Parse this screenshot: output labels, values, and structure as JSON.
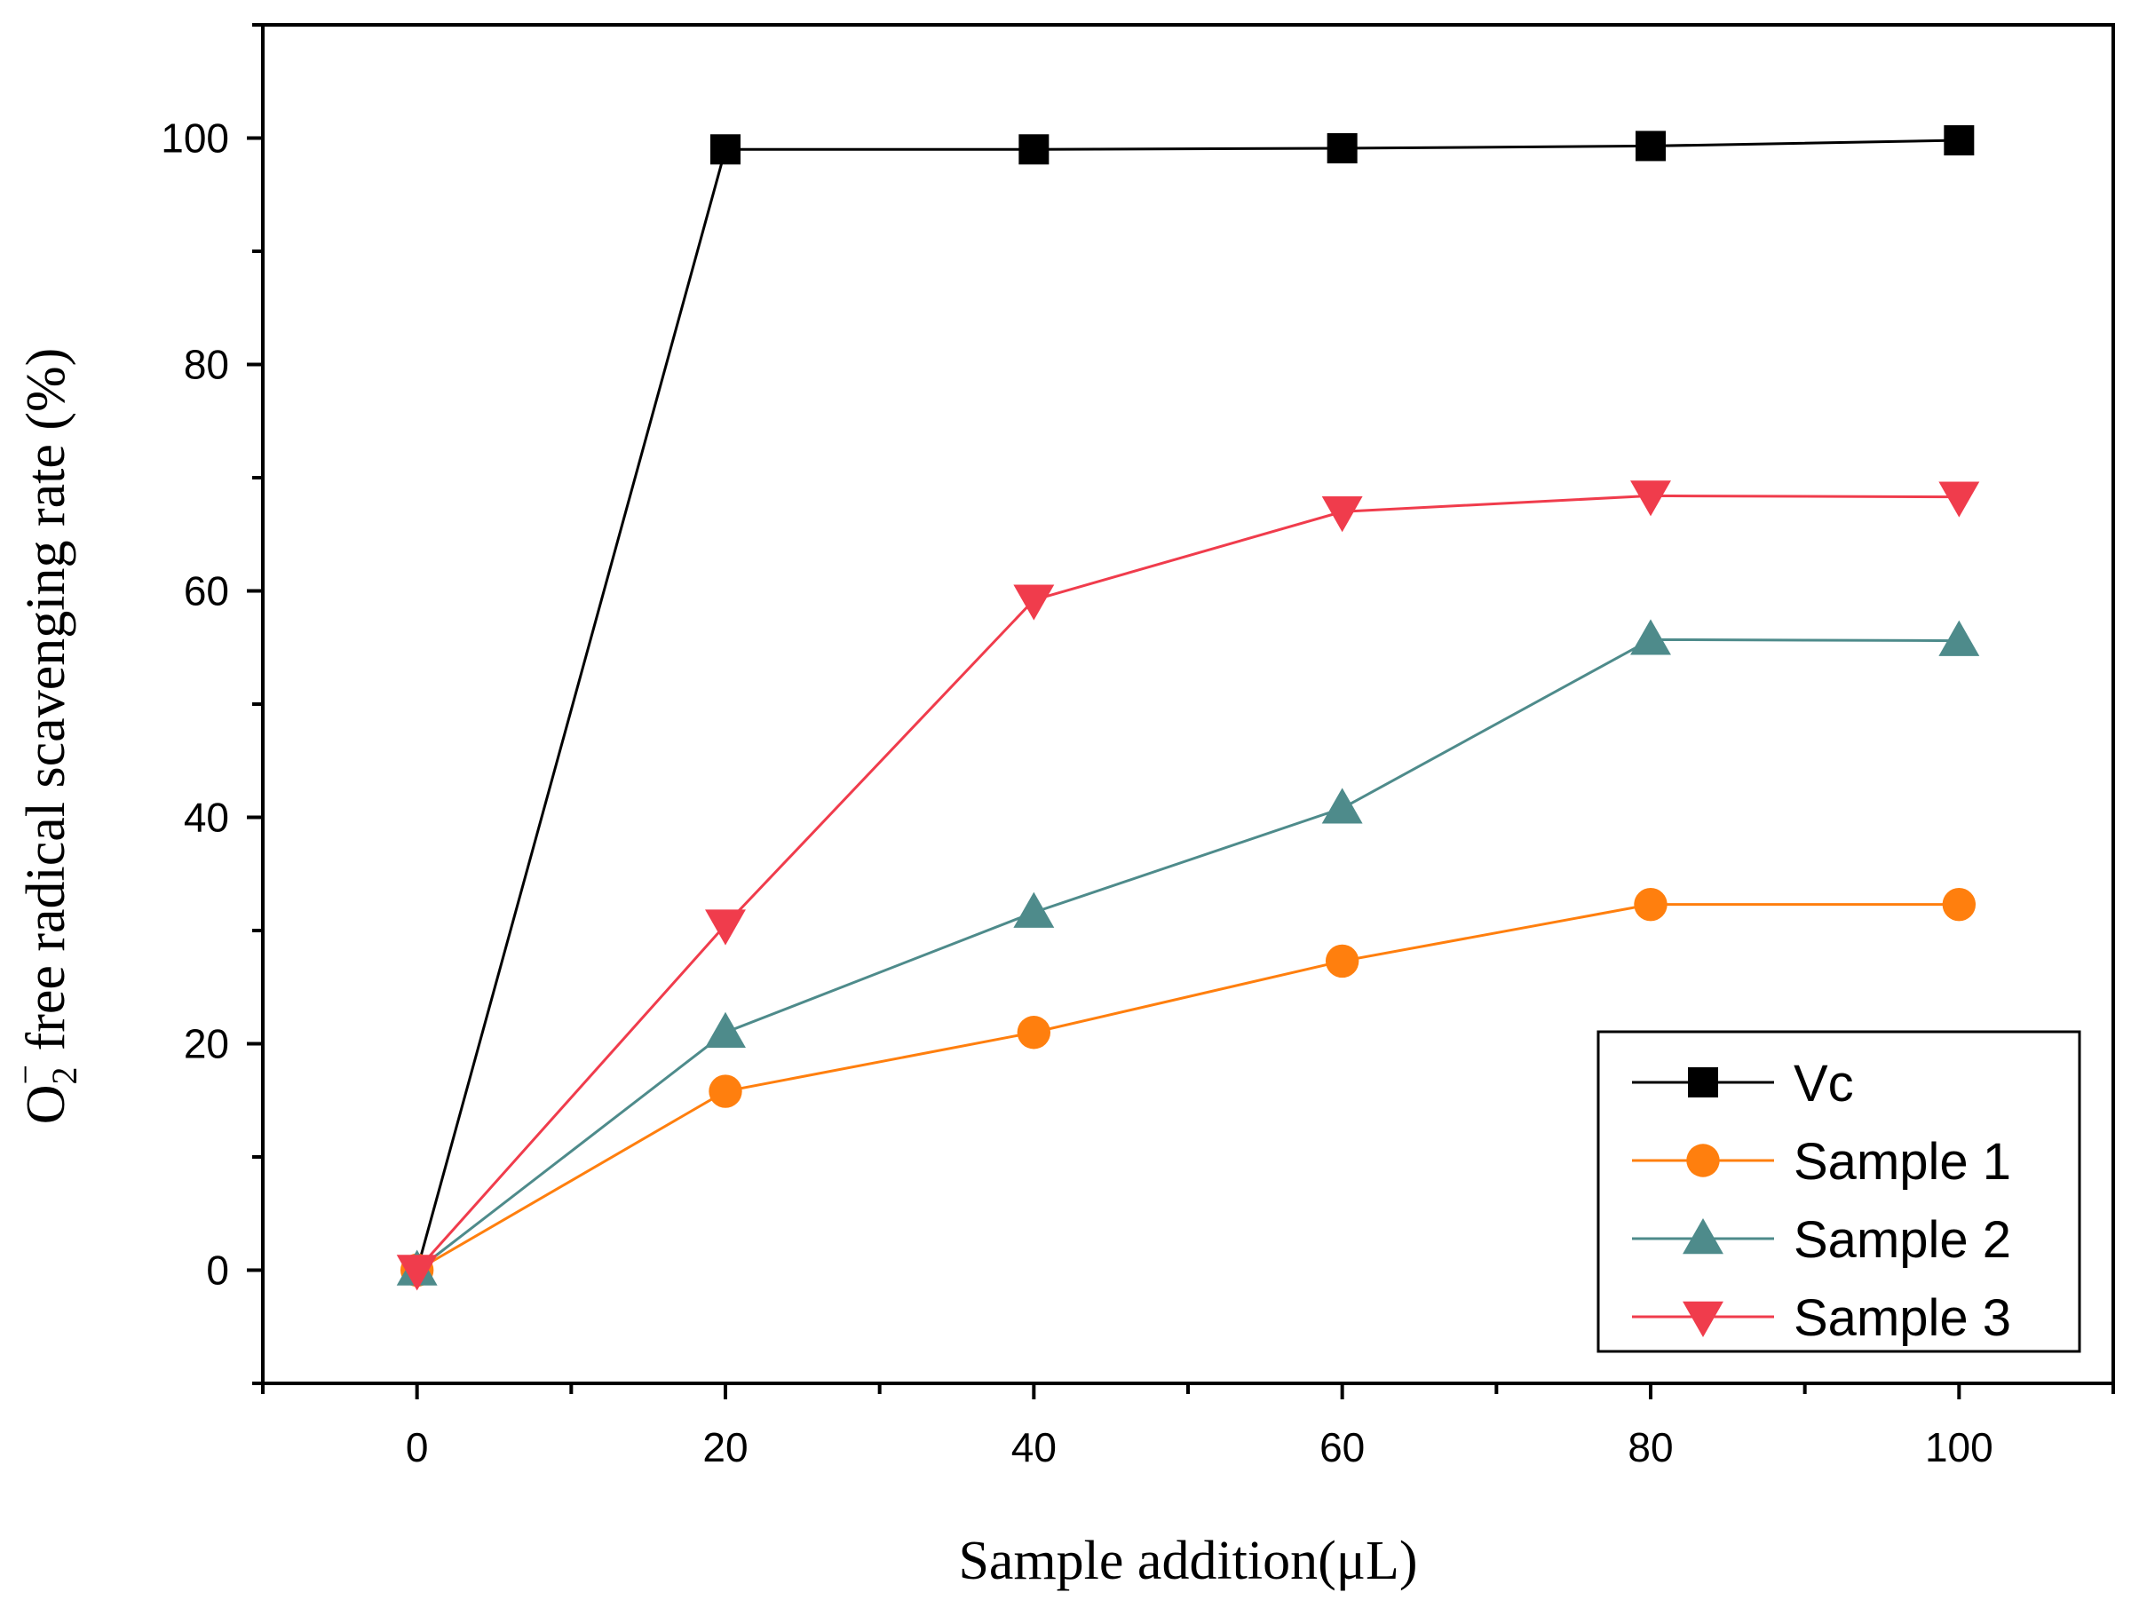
{
  "chart_data": {
    "type": "line",
    "xlabel": "Sample addition(μL)",
    "ylabel": {
      "pre": "O",
      "sub": "2",
      "sup": "−",
      "post": " free radical scavenging rate (%)"
    },
    "xlim": [
      -10,
      110
    ],
    "ylim": [
      -10,
      110
    ],
    "xticks": [
      0,
      20,
      40,
      60,
      80,
      100
    ],
    "yticks": [
      0,
      20,
      40,
      60,
      80,
      100
    ],
    "x": [
      0,
      20,
      40,
      60,
      80,
      100
    ],
    "grid": false,
    "legend_position": "bottom-right",
    "series": [
      {
        "name": "Vc",
        "color": "#000000",
        "marker": "square",
        "values": [
          0,
          99.0,
          99.0,
          99.1,
          99.3,
          99.8
        ]
      },
      {
        "name": "Sample 1",
        "color": "#ff7f0e",
        "marker": "circle",
        "values": [
          0,
          15.8,
          21.0,
          27.3,
          32.3,
          32.3
        ]
      },
      {
        "name": "Sample 2",
        "color": "#4e8b8b",
        "marker": "triangle-up",
        "values": [
          0,
          21.0,
          31.6,
          40.8,
          55.7,
          55.6
        ]
      },
      {
        "name": "Sample 3",
        "color": "#f03c4c",
        "marker": "triangle-down",
        "values": [
          0,
          30.5,
          59.2,
          67.0,
          68.4,
          68.3
        ]
      }
    ]
  }
}
